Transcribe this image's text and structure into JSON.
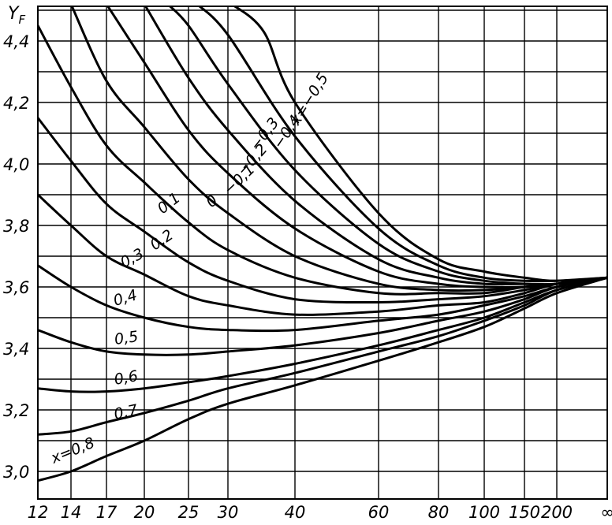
{
  "chart_data": {
    "type": "line",
    "title": "",
    "ylabel": "Y",
    "ylabel_sub": "F",
    "xlabel": "",
    "x_ticks": [
      {
        "value": 12,
        "label": "12"
      },
      {
        "value": 14,
        "label": "14"
      },
      {
        "value": 17,
        "label": "17"
      },
      {
        "value": 20,
        "label": "20"
      },
      {
        "value": 25,
        "label": "25"
      },
      {
        "value": 30,
        "label": "30"
      },
      {
        "value": 40,
        "label": "40"
      },
      {
        "value": 60,
        "label": "60"
      },
      {
        "value": 80,
        "label": "80"
      },
      {
        "value": 100,
        "label": "100"
      },
      {
        "value": 150,
        "label": "150"
      },
      {
        "value": 200,
        "label": "200"
      },
      {
        "value": "inf",
        "label": "∞"
      }
    ],
    "y_ticks": [
      {
        "value": 3.0,
        "label": "3,0"
      },
      {
        "value": 3.2,
        "label": "3,2"
      },
      {
        "value": 3.4,
        "label": "3,4"
      },
      {
        "value": 3.6,
        "label": "3,6"
      },
      {
        "value": 3.8,
        "label": "3,8"
      },
      {
        "value": 4.0,
        "label": "4,0"
      },
      {
        "value": 4.2,
        "label": "4,2"
      },
      {
        "value": 4.4,
        "label": "4,4"
      }
    ],
    "ylim": [
      2.93,
      4.52
    ],
    "grid": true,
    "series": [
      {
        "label": "x=0,8",
        "points": [
          [
            12,
            2.97
          ],
          [
            14,
            3.0
          ],
          [
            17,
            3.05
          ],
          [
            20,
            3.1
          ],
          [
            25,
            3.17
          ],
          [
            30,
            3.22
          ],
          [
            40,
            3.28
          ],
          [
            60,
            3.36
          ],
          [
            80,
            3.42
          ],
          [
            100,
            3.47
          ],
          [
            150,
            3.53
          ],
          [
            200,
            3.58
          ],
          [
            "inf",
            3.63
          ]
        ]
      },
      {
        "label": "0,7",
        "points": [
          [
            12,
            3.12
          ],
          [
            14,
            3.13
          ],
          [
            17,
            3.16
          ],
          [
            20,
            3.19
          ],
          [
            25,
            3.23
          ],
          [
            30,
            3.27
          ],
          [
            40,
            3.32
          ],
          [
            60,
            3.39
          ],
          [
            80,
            3.44
          ],
          [
            100,
            3.49
          ],
          [
            150,
            3.54
          ],
          [
            200,
            3.59
          ],
          [
            "inf",
            3.63
          ]
        ]
      },
      {
        "label": "0,6",
        "points": [
          [
            12,
            3.27
          ],
          [
            14,
            3.26
          ],
          [
            17,
            3.26
          ],
          [
            20,
            3.27
          ],
          [
            25,
            3.29
          ],
          [
            30,
            3.31
          ],
          [
            40,
            3.35
          ],
          [
            60,
            3.41
          ],
          [
            80,
            3.46
          ],
          [
            100,
            3.5
          ],
          [
            150,
            3.55
          ],
          [
            200,
            3.59
          ],
          [
            "inf",
            3.63
          ]
        ]
      },
      {
        "label": "0,5",
        "points": [
          [
            12,
            3.46
          ],
          [
            14,
            3.42
          ],
          [
            17,
            3.39
          ],
          [
            20,
            3.38
          ],
          [
            25,
            3.38
          ],
          [
            30,
            3.39
          ],
          [
            40,
            3.41
          ],
          [
            60,
            3.45
          ],
          [
            80,
            3.49
          ],
          [
            100,
            3.52
          ],
          [
            150,
            3.56
          ],
          [
            200,
            3.6
          ],
          [
            "inf",
            3.63
          ]
        ]
      },
      {
        "label": "0,4",
        "points": [
          [
            12,
            3.67
          ],
          [
            14,
            3.6
          ],
          [
            17,
            3.54
          ],
          [
            20,
            3.5
          ],
          [
            25,
            3.47
          ],
          [
            30,
            3.46
          ],
          [
            40,
            3.46
          ],
          [
            60,
            3.49
          ],
          [
            80,
            3.51
          ],
          [
            100,
            3.54
          ],
          [
            150,
            3.57
          ],
          [
            200,
            3.6
          ],
          [
            "inf",
            3.63
          ]
        ]
      },
      {
        "label": "0,3",
        "points": [
          [
            12,
            3.9
          ],
          [
            14,
            3.8
          ],
          [
            17,
            3.7
          ],
          [
            20,
            3.64
          ],
          [
            25,
            3.57
          ],
          [
            30,
            3.54
          ],
          [
            40,
            3.51
          ],
          [
            60,
            3.52
          ],
          [
            80,
            3.54
          ],
          [
            100,
            3.55
          ],
          [
            150,
            3.58
          ],
          [
            200,
            3.61
          ],
          [
            "inf",
            3.63
          ]
        ]
      },
      {
        "label": "0,2",
        "points": [
          [
            12,
            4.15
          ],
          [
            14,
            4.01
          ],
          [
            17,
            3.87
          ],
          [
            20,
            3.78
          ],
          [
            25,
            3.68
          ],
          [
            30,
            3.62
          ],
          [
            40,
            3.56
          ],
          [
            60,
            3.55
          ],
          [
            80,
            3.56
          ],
          [
            100,
            3.57
          ],
          [
            150,
            3.59
          ],
          [
            200,
            3.61
          ],
          [
            "inf",
            3.63
          ]
        ]
      },
      {
        "label": "0,1",
        "points": [
          [
            12,
            4.45
          ],
          [
            14,
            4.25
          ],
          [
            17,
            4.06
          ],
          [
            20,
            3.94
          ],
          [
            25,
            3.81
          ],
          [
            30,
            3.72
          ],
          [
            40,
            3.63
          ],
          [
            60,
            3.58
          ],
          [
            80,
            3.58
          ],
          [
            100,
            3.58
          ],
          [
            150,
            3.6
          ],
          [
            200,
            3.61
          ],
          [
            "inf",
            3.63
          ]
        ]
      },
      {
        "label": "0",
        "points": [
          [
            14,
            4.52
          ],
          [
            17,
            4.27
          ],
          [
            20,
            4.12
          ],
          [
            25,
            3.95
          ],
          [
            30,
            3.84
          ],
          [
            40,
            3.7
          ],
          [
            60,
            3.61
          ],
          [
            80,
            3.59
          ],
          [
            100,
            3.59
          ],
          [
            150,
            3.6
          ],
          [
            200,
            3.61
          ],
          [
            "inf",
            3.63
          ]
        ]
      },
      {
        "label": "−0,1",
        "points": [
          [
            17,
            4.52
          ],
          [
            20,
            4.33
          ],
          [
            25,
            4.11
          ],
          [
            30,
            3.97
          ],
          [
            40,
            3.79
          ],
          [
            60,
            3.65
          ],
          [
            80,
            3.61
          ],
          [
            100,
            3.6
          ],
          [
            150,
            3.6
          ],
          [
            200,
            3.61
          ],
          [
            "inf",
            3.63
          ]
        ]
      },
      {
        "label": "−0,2",
        "points": [
          [
            20,
            4.52
          ],
          [
            25,
            4.28
          ],
          [
            30,
            4.11
          ],
          [
            40,
            3.88
          ],
          [
            60,
            3.69
          ],
          [
            80,
            3.63
          ],
          [
            100,
            3.61
          ],
          [
            150,
            3.61
          ],
          [
            200,
            3.61
          ],
          [
            "inf",
            3.63
          ]
        ]
      },
      {
        "label": "−0,3",
        "points": [
          [
            22.5,
            4.52
          ],
          [
            25,
            4.45
          ],
          [
            30,
            4.26
          ],
          [
            40,
            3.98
          ],
          [
            60,
            3.74
          ],
          [
            80,
            3.65
          ],
          [
            100,
            3.62
          ],
          [
            150,
            3.61
          ],
          [
            200,
            3.61
          ],
          [
            "inf",
            3.63
          ]
        ]
      },
      {
        "label": "−0,4",
        "points": [
          [
            26,
            4.52
          ],
          [
            30,
            4.42
          ],
          [
            40,
            4.09
          ],
          [
            60,
            3.79
          ],
          [
            80,
            3.67
          ],
          [
            100,
            3.63
          ],
          [
            150,
            3.62
          ],
          [
            200,
            3.62
          ],
          [
            "inf",
            3.63
          ]
        ]
      },
      {
        "label": "x=−0,5",
        "points": [
          [
            30.5,
            4.52
          ],
          [
            35,
            4.43
          ],
          [
            40,
            4.2
          ],
          [
            60,
            3.84
          ],
          [
            80,
            3.69
          ],
          [
            100,
            3.65
          ],
          [
            150,
            3.63
          ],
          [
            200,
            3.62
          ],
          [
            "inf",
            3.63
          ]
        ]
      }
    ]
  }
}
